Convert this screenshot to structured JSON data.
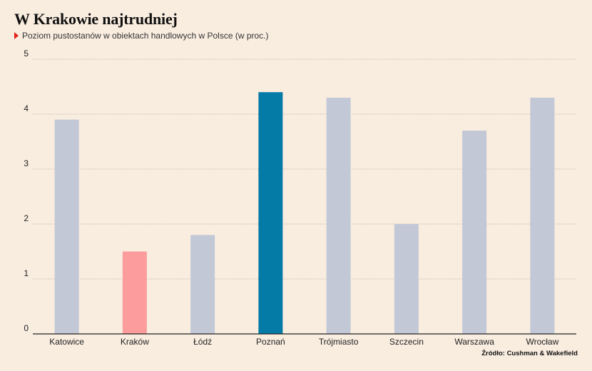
{
  "header": {
    "title": "W Krakowie najtrudniej",
    "subtitle": "Poziom pustostanów w obiektach handlowych w Polsce (w proc.)"
  },
  "source": "Źródło: Cushman & Wakefield",
  "colors": {
    "default_bar": "#c2c8d6",
    "krakow_bar": "#fc9c9c",
    "poznan_bar": "#047aa6",
    "grid": "#b7aea6",
    "axis": "#222222",
    "accent_marker": "#e0231b"
  },
  "chart_data": {
    "type": "bar",
    "title": "W Krakowie najtrudniej",
    "subtitle": "Poziom pustostanów w obiektach handlowych w Polsce (w proc.)",
    "xlabel": "",
    "ylabel": "",
    "categories": [
      "Katowice",
      "Kraków",
      "Łódź",
      "Poznań",
      "Trójmiasto",
      "Szczecin",
      "Warszawa",
      "Wrocław"
    ],
    "values": [
      3.9,
      1.5,
      1.8,
      4.4,
      4.3,
      2.0,
      3.7,
      4.3
    ],
    "bar_colors": [
      "#c2c8d6",
      "#fc9c9c",
      "#c2c8d6",
      "#047aa6",
      "#c2c8d6",
      "#c2c8d6",
      "#c2c8d6",
      "#c2c8d6"
    ],
    "ylim": [
      0,
      5
    ],
    "yticks": [
      0,
      1,
      2,
      3,
      4,
      5
    ],
    "grid": true,
    "legend": "none"
  }
}
